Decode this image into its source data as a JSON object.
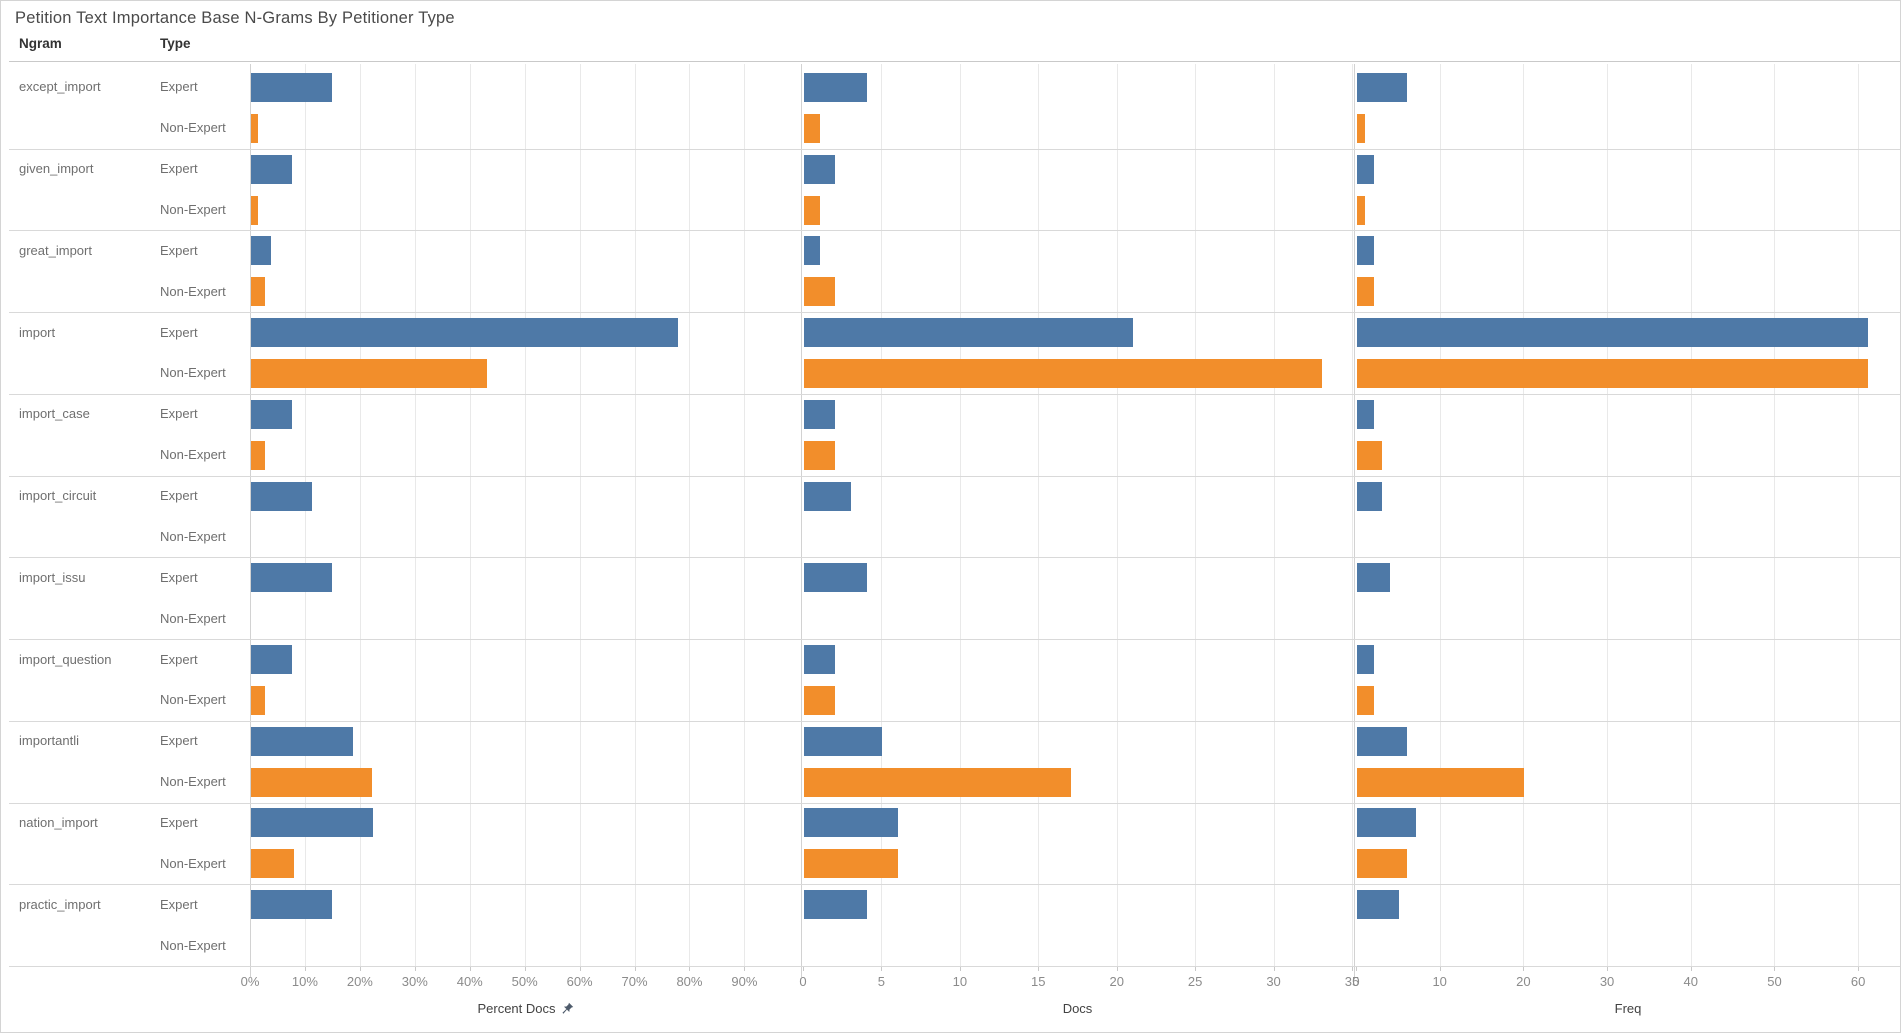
{
  "title": "Petition Text Importance Base N-Grams By Petitioner Type",
  "columns": {
    "ngram": "Ngram",
    "type": "Type"
  },
  "legend_types": [
    "Expert",
    "Non-Expert"
  ],
  "colors": {
    "expert_bar": "#4e79a7",
    "non_expert_bar": "#f28e2b",
    "pin_icon": "#4e5b6b"
  },
  "axes": [
    {
      "id": "percent_docs",
      "label": "Percent Docs",
      "tick_labels": [
        "0%",
        "10%",
        "20%",
        "30%",
        "40%",
        "50%",
        "60%",
        "70%",
        "80%",
        "90%"
      ],
      "tick_values": [
        0,
        10,
        20,
        30,
        40,
        50,
        60,
        70,
        80,
        90
      ],
      "domain_max": 100.3,
      "has_pin_icon": true
    },
    {
      "id": "docs",
      "label": "Docs",
      "tick_labels": [
        "0",
        "5",
        "10",
        "15",
        "20",
        "25",
        "30",
        "35"
      ],
      "tick_values": [
        0,
        5,
        10,
        15,
        20,
        25,
        30,
        35
      ],
      "domain_max": 35,
      "has_pin_icon": false
    },
    {
      "id": "freq",
      "label": "Freq",
      "tick_labels": [
        "0",
        "10",
        "20",
        "30",
        "40",
        "50",
        "60"
      ],
      "tick_values": [
        0,
        10,
        20,
        30,
        40,
        50,
        60
      ],
      "domain_max": 65,
      "has_pin_icon": false
    }
  ],
  "chart_data": {
    "type": "bar",
    "orientation": "horizontal",
    "measures": [
      "percent_docs",
      "docs",
      "freq"
    ],
    "grid": true,
    "rows": [
      {
        "ngram": "except_import",
        "values": [
          {
            "type": "Expert",
            "percent_docs": 14.8,
            "docs": 4,
            "freq": 6
          },
          {
            "type": "Non-Expert",
            "percent_docs": 1.3,
            "docs": 1,
            "freq": 1
          }
        ]
      },
      {
        "ngram": "given_import",
        "values": [
          {
            "type": "Expert",
            "percent_docs": 7.4,
            "docs": 2,
            "freq": 2
          },
          {
            "type": "Non-Expert",
            "percent_docs": 1.3,
            "docs": 1,
            "freq": 1
          }
        ]
      },
      {
        "ngram": "great_import",
        "values": [
          {
            "type": "Expert",
            "percent_docs": 3.7,
            "docs": 1,
            "freq": 2
          },
          {
            "type": "Non-Expert",
            "percent_docs": 2.6,
            "docs": 2,
            "freq": 2
          }
        ]
      },
      {
        "ngram": "import",
        "values": [
          {
            "type": "Expert",
            "percent_docs": 77.8,
            "docs": 21,
            "freq": 61
          },
          {
            "type": "Non-Expert",
            "percent_docs": 42.9,
            "docs": 33,
            "freq": 61
          }
        ]
      },
      {
        "ngram": "import_case",
        "values": [
          {
            "type": "Expert",
            "percent_docs": 7.4,
            "docs": 2,
            "freq": 2
          },
          {
            "type": "Non-Expert",
            "percent_docs": 2.6,
            "docs": 2,
            "freq": 3
          }
        ]
      },
      {
        "ngram": "import_circuit",
        "values": [
          {
            "type": "Expert",
            "percent_docs": 11.1,
            "docs": 3,
            "freq": 3
          },
          {
            "type": "Non-Expert",
            "percent_docs": null,
            "docs": null,
            "freq": null
          }
        ]
      },
      {
        "ngram": "import_issu",
        "values": [
          {
            "type": "Expert",
            "percent_docs": 14.8,
            "docs": 4,
            "freq": 4
          },
          {
            "type": "Non-Expert",
            "percent_docs": null,
            "docs": null,
            "freq": null
          }
        ]
      },
      {
        "ngram": "import_question",
        "values": [
          {
            "type": "Expert",
            "percent_docs": 7.4,
            "docs": 2,
            "freq": 2
          },
          {
            "type": "Non-Expert",
            "percent_docs": 2.6,
            "docs": 2,
            "freq": 2
          }
        ]
      },
      {
        "ngram": "importantli",
        "values": [
          {
            "type": "Expert",
            "percent_docs": 18.5,
            "docs": 5,
            "freq": 6
          },
          {
            "type": "Non-Expert",
            "percent_docs": 22.1,
            "docs": 17,
            "freq": 20
          }
        ]
      },
      {
        "ngram": "nation_import",
        "values": [
          {
            "type": "Expert",
            "percent_docs": 22.2,
            "docs": 6,
            "freq": 7
          },
          {
            "type": "Non-Expert",
            "percent_docs": 7.8,
            "docs": 6,
            "freq": 6
          }
        ]
      },
      {
        "ngram": "practic_import",
        "values": [
          {
            "type": "Expert",
            "percent_docs": 14.8,
            "docs": 4,
            "freq": 5
          },
          {
            "type": "Non-Expert",
            "percent_docs": null,
            "docs": null,
            "freq": null
          }
        ]
      }
    ]
  }
}
